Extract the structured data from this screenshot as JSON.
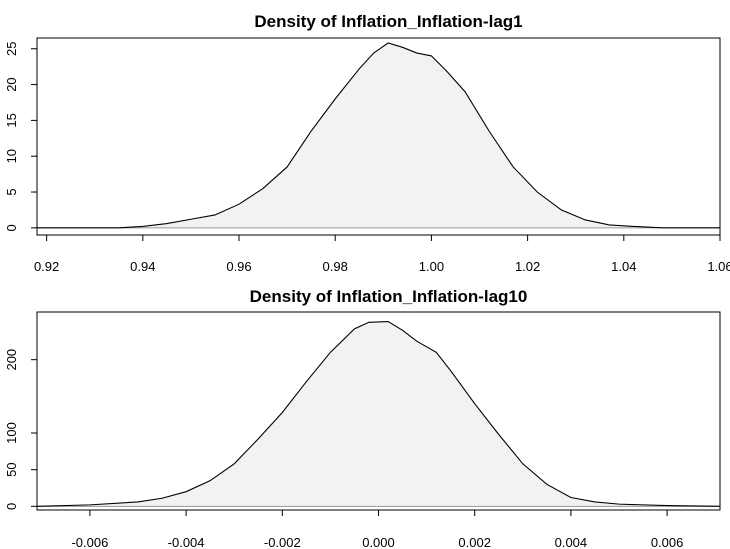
{
  "chart_data": [
    {
      "type": "area",
      "title": "Density of Inflation_Inflation-lag1",
      "xlabel": "",
      "ylabel": "",
      "xlim": [
        0.918,
        1.06
      ],
      "ylim": [
        -1,
        26.5
      ],
      "xticks": [
        0.92,
        0.94,
        0.96,
        0.98,
        1.0,
        1.02,
        1.04,
        1.06
      ],
      "xtick_labels": [
        "0.92",
        "0.94",
        "0.96",
        "0.98",
        "1.00",
        "1.02",
        "1.04",
        "1.06"
      ],
      "yticks": [
        0,
        5,
        10,
        15,
        20,
        25
      ],
      "ytick_labels": [
        "0",
        "5",
        "10",
        "15",
        "20",
        "25"
      ],
      "x": [
        0.918,
        0.935,
        0.94,
        0.945,
        0.95,
        0.955,
        0.96,
        0.965,
        0.97,
        0.975,
        0.98,
        0.985,
        0.988,
        0.991,
        0.994,
        0.997,
        1.0,
        1.003,
        1.007,
        1.012,
        1.017,
        1.022,
        1.027,
        1.032,
        1.037,
        1.042,
        1.048,
        1.06
      ],
      "y": [
        0.0,
        0.0,
        0.2,
        0.6,
        1.2,
        1.8,
        3.3,
        5.5,
        8.5,
        13.5,
        18.0,
        22.2,
        24.4,
        25.8,
        25.2,
        24.4,
        24.0,
        22.0,
        19.0,
        13.5,
        8.5,
        5.0,
        2.5,
        1.1,
        0.4,
        0.2,
        0.0,
        0.0
      ],
      "grid": false
    },
    {
      "type": "area",
      "title": "Density of Inflation_Inflation-lag10",
      "xlabel": "",
      "ylabel": "",
      "xlim": [
        -0.0071,
        0.0071
      ],
      "ylim": [
        -5,
        265
      ],
      "xticks": [
        -0.006,
        -0.004,
        -0.002,
        0.0,
        0.002,
        0.004,
        0.006
      ],
      "xtick_labels": [
        "-0.006",
        "-0.004",
        "-0.002",
        "0.000",
        "0.002",
        "0.004",
        "0.006"
      ],
      "yticks": [
        0,
        50,
        100,
        200
      ],
      "ytick_labels": [
        "0",
        "50",
        "100",
        "200"
      ],
      "x": [
        -0.0071,
        -0.006,
        -0.005,
        -0.0045,
        -0.004,
        -0.0035,
        -0.003,
        -0.0025,
        -0.002,
        -0.0015,
        -0.001,
        -0.0005,
        -0.0002,
        0.0002,
        0.0005,
        0.0008,
        0.0012,
        0.0015,
        0.002,
        0.0025,
        0.003,
        0.0035,
        0.004,
        0.0045,
        0.005,
        0.006,
        0.0071
      ],
      "y": [
        0.0,
        2.0,
        6.0,
        11.0,
        20.0,
        35.0,
        58.0,
        92.0,
        128.0,
        170.0,
        210.0,
        242.0,
        251.0,
        252.0,
        240.0,
        225.0,
        210.0,
        185.0,
        140.0,
        98.0,
        58.0,
        30.0,
        12.0,
        6.0,
        3.0,
        1.0,
        0.0
      ],
      "grid": false
    }
  ]
}
